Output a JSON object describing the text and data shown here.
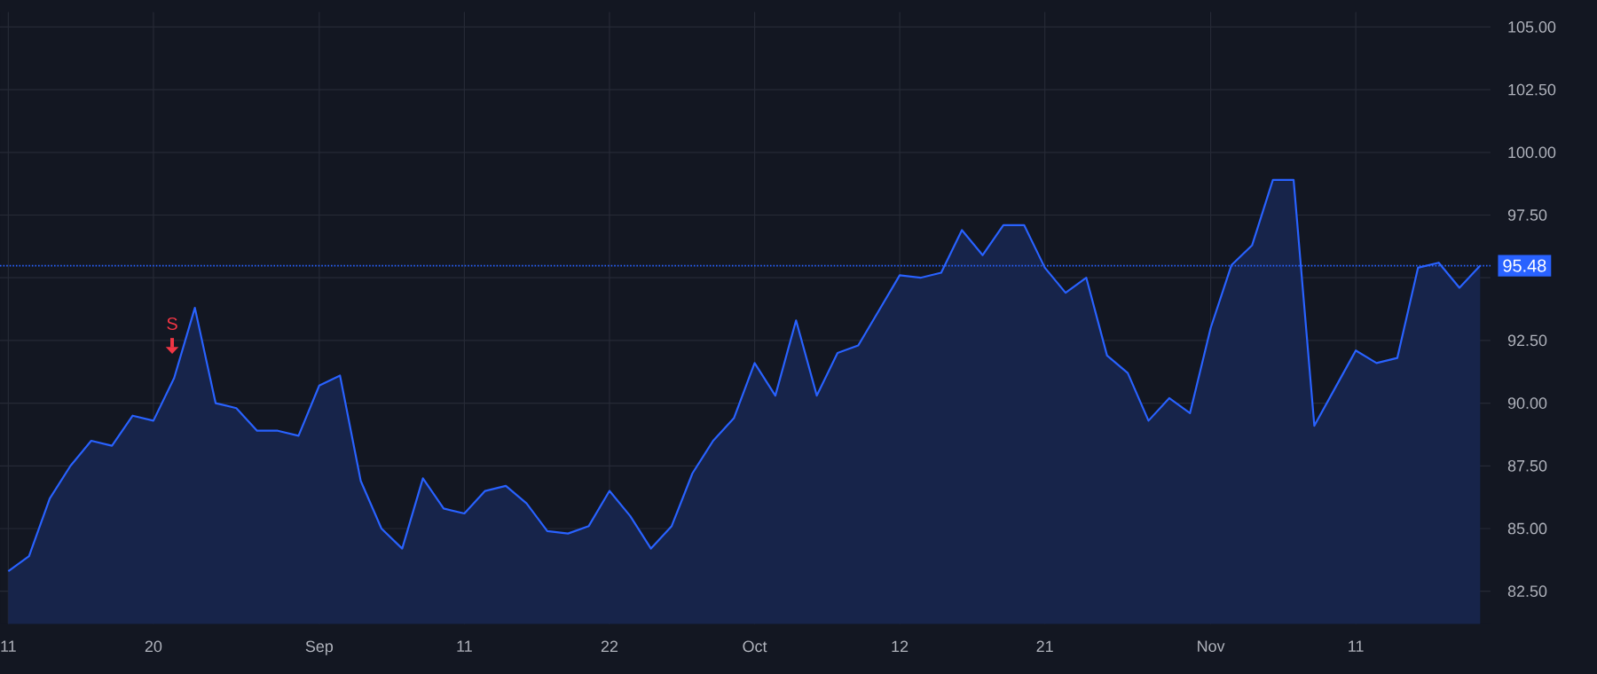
{
  "chart_data": {
    "type": "area",
    "categories": [
      "11",
      null,
      null,
      null,
      null,
      null,
      null,
      "20",
      null,
      null,
      null,
      null,
      null,
      null,
      null,
      "Sep",
      null,
      null,
      null,
      null,
      null,
      null,
      "11",
      null,
      null,
      null,
      null,
      null,
      null,
      "22",
      null,
      null,
      null,
      null,
      null,
      null,
      "Oct",
      null,
      null,
      null,
      null,
      null,
      null,
      "12",
      null,
      null,
      null,
      null,
      null,
      null,
      "21",
      null,
      null,
      null,
      null,
      null,
      null,
      null,
      "Nov",
      null,
      null,
      null,
      null,
      null,
      null,
      "11",
      null,
      null,
      null,
      null,
      null,
      null
    ],
    "series": [
      {
        "color": "#2962ff",
        "values": [
          83.3,
          83.9,
          86.2,
          87.5,
          88.5,
          88.3,
          89.5,
          89.3,
          91.0,
          93.8,
          90.0,
          89.8,
          88.9,
          88.9,
          88.7,
          90.7,
          91.1,
          86.9,
          85.0,
          84.2,
          87.0,
          85.8,
          85.6,
          86.5,
          86.7,
          86.0,
          84.9,
          84.8,
          85.1,
          86.5,
          85.5,
          84.2,
          85.1,
          87.2,
          88.5,
          89.4,
          91.6,
          90.3,
          93.3,
          90.3,
          92.0,
          92.3,
          93.7,
          95.1,
          95.0,
          95.2,
          96.9,
          95.9,
          97.1,
          97.1,
          95.4,
          94.4,
          95.0,
          91.9,
          91.2,
          89.3,
          90.2,
          89.6,
          93.0,
          95.5,
          96.3,
          98.9,
          98.9,
          89.1,
          90.6,
          92.1,
          91.6,
          91.8,
          95.4,
          95.6,
          94.6,
          95.48
        ]
      }
    ],
    "ylim": [
      81.2,
      105.6
    ],
    "yticks": [
      {
        "value": 82.5,
        "label": "82.50"
      },
      {
        "value": 85,
        "label": "85.00"
      },
      {
        "value": 87.5,
        "label": "87.50"
      },
      {
        "value": 90,
        "label": "90.00"
      },
      {
        "value": 92.5,
        "label": "92.50"
      },
      {
        "value": 95,
        "label": null
      },
      {
        "value": 97.5,
        "label": "97.50"
      },
      {
        "value": 100,
        "label": "100.00"
      },
      {
        "value": 102.5,
        "label": "102.50"
      },
      {
        "value": 105,
        "label": "105.00"
      }
    ],
    "grid": true,
    "ref_lines": [
      {
        "axis": "y",
        "value": 95.48,
        "label": "95.48",
        "color": "#2962ff",
        "line_style": "dotted"
      }
    ],
    "annotations": [
      "S"
    ]
  }
}
